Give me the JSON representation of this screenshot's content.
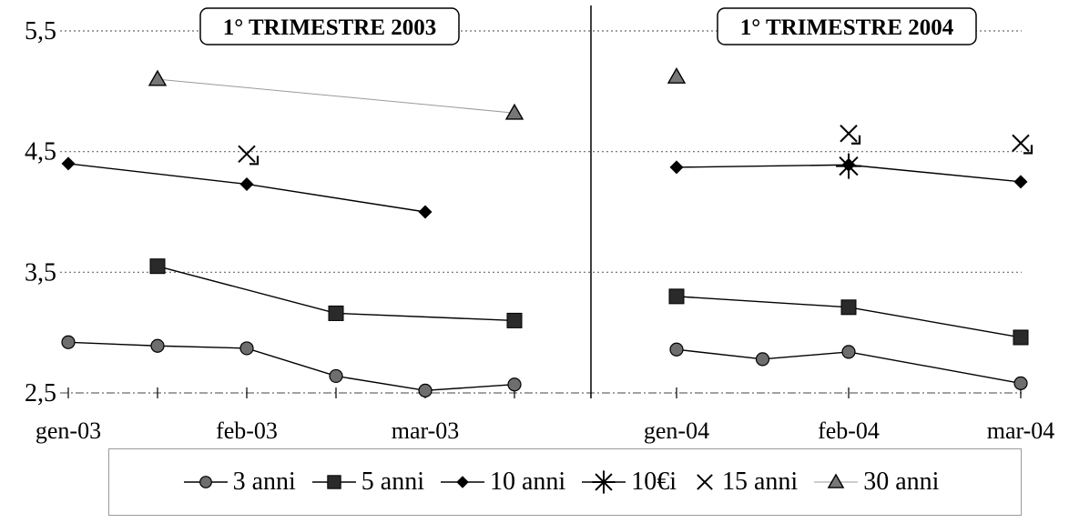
{
  "chart_data": [
    {
      "type": "line",
      "title": "1° TRIMESTRE 2003",
      "xlabel": "",
      "ylabel": "",
      "ylim": [
        2.5,
        5.5
      ],
      "x_ticks": [
        {
          "label": "gen-03",
          "x": 0
        },
        {
          "label": "",
          "x": 1
        },
        {
          "label": "feb-03",
          "x": 2
        },
        {
          "label": "",
          "x": 3
        },
        {
          "label": "mar-03",
          "x": 4
        },
        {
          "label": "",
          "x": 5
        }
      ],
      "series": [
        {
          "name": "3 anni",
          "marker": "circle",
          "x": [
            0,
            1,
            2,
            3,
            4,
            5
          ],
          "values": [
            2.92,
            2.89,
            2.87,
            2.64,
            2.52,
            2.57
          ]
        },
        {
          "name": "5 anni",
          "marker": "square",
          "x": [
            1,
            3,
            5
          ],
          "values": [
            3.55,
            3.16,
            3.1
          ]
        },
        {
          "name": "10 anni",
          "marker": "diamond",
          "x": [
            0,
            2,
            4
          ],
          "values": [
            4.4,
            4.23,
            4.0
          ]
        },
        {
          "name": "10€i",
          "marker": "asterisk",
          "x": [],
          "values": []
        },
        {
          "name": "15 anni",
          "marker": "cross",
          "x": [
            2
          ],
          "values": [
            4.48
          ]
        },
        {
          "name": "30 anni",
          "marker": "triangle",
          "x": [
            1,
            5
          ],
          "values": [
            5.1,
            4.82
          ]
        }
      ]
    },
    {
      "type": "line",
      "title": "1° TRIMESTRE 2004",
      "xlabel": "",
      "ylabel": "",
      "ylim": [
        2.5,
        5.5
      ],
      "x_ticks": [
        {
          "label": "gen-04",
          "x": 0
        },
        {
          "label": "feb-04",
          "x": 1
        },
        {
          "label": "mar-04",
          "x": 2
        }
      ],
      "series": [
        {
          "name": "3 anni",
          "marker": "circle",
          "x": [
            0,
            0.5,
            1,
            2
          ],
          "values": [
            2.86,
            2.78,
            2.84,
            2.58
          ]
        },
        {
          "name": "5 anni",
          "marker": "square",
          "x": [
            0,
            1,
            2
          ],
          "values": [
            3.3,
            3.21,
            2.96
          ]
        },
        {
          "name": "10 anni",
          "marker": "diamond",
          "x": [
            0,
            1,
            2
          ],
          "values": [
            4.37,
            4.39,
            4.25
          ]
        },
        {
          "name": "10€i",
          "marker": "asterisk",
          "x": [
            1
          ],
          "values": [
            4.38
          ]
        },
        {
          "name": "15 anni",
          "marker": "cross",
          "x": [
            1,
            2
          ],
          "values": [
            4.65,
            4.57
          ]
        },
        {
          "name": "30 anni",
          "marker": "triangle",
          "x": [
            0
          ],
          "values": [
            5.12
          ]
        }
      ]
    }
  ],
  "y_tick_labels": [
    "2,5",
    "3,5",
    "4,5",
    "5,5"
  ],
  "legend": [
    {
      "label": "3 anni",
      "marker": "circle"
    },
    {
      "label": "5 anni",
      "marker": "square"
    },
    {
      "label": "10 anni",
      "marker": "diamond"
    },
    {
      "label": "10€i",
      "marker": "asterisk"
    },
    {
      "label": "15 anni",
      "marker": "cross"
    },
    {
      "label": "30 anni",
      "marker": "triangle"
    }
  ],
  "colors": {
    "ink": "#000000",
    "grid": "#555555",
    "marker_gray": "#6e6e6e"
  }
}
